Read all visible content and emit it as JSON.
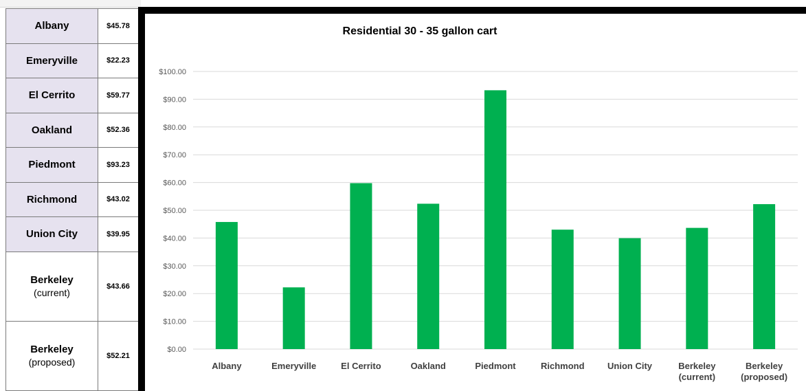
{
  "table": {
    "rows": [
      {
        "city": "Albany",
        "sub": "",
        "value": "$45.78",
        "shaded": true
      },
      {
        "city": "Emeryville",
        "sub": "",
        "value": "$22.23",
        "shaded": true
      },
      {
        "city": "El Cerrito",
        "sub": "",
        "value": "$59.77",
        "shaded": true
      },
      {
        "city": "Oakland",
        "sub": "",
        "value": "$52.36",
        "shaded": true
      },
      {
        "city": "Piedmont",
        "sub": "",
        "value": "$93.23",
        "shaded": true
      },
      {
        "city": "Richmond",
        "sub": "",
        "value": "$43.02",
        "shaded": true
      },
      {
        "city": "Union City",
        "sub": "",
        "value": "$39.95",
        "shaded": true
      },
      {
        "city": "Berkeley",
        "sub": "(current)",
        "value": "$43.66",
        "shaded": false
      },
      {
        "city": "Berkeley",
        "sub": "(proposed)",
        "value": "$52.21",
        "shaded": false
      }
    ]
  },
  "chart_data": {
    "type": "bar",
    "title": "Residential 30 - 35 gallon cart",
    "categories": [
      "Albany",
      "Emeryville",
      "El Cerrito",
      "Oakland",
      "Piedmont",
      "Richmond",
      "Union City",
      "Berkeley (current)",
      "Berkeley (proposed)"
    ],
    "category_lines": [
      [
        "Albany"
      ],
      [
        "Emeryville"
      ],
      [
        "El Cerrito"
      ],
      [
        "Oakland"
      ],
      [
        "Piedmont"
      ],
      [
        "Richmond"
      ],
      [
        "Union City"
      ],
      [
        "Berkeley",
        "(current)"
      ],
      [
        "Berkeley",
        "(proposed)"
      ]
    ],
    "values": [
      45.78,
      22.23,
      59.77,
      52.36,
      93.23,
      43.02,
      39.95,
      43.66,
      52.21
    ],
    "ylim": [
      0,
      100
    ],
    "ytick_values": [
      0,
      10,
      20,
      30,
      40,
      50,
      60,
      70,
      80,
      90,
      100
    ],
    "ytick_labels": [
      "$0.00",
      "$10.00",
      "$20.00",
      "$30.00",
      "$40.00",
      "$50.00",
      "$60.00",
      "$70.00",
      "$80.00",
      "$90.00",
      "$100.00"
    ],
    "grid": true,
    "legend": "none",
    "bar_color": "#00b050",
    "grid_color": "#d9d9d9",
    "xlabel": "",
    "ylabel": ""
  }
}
